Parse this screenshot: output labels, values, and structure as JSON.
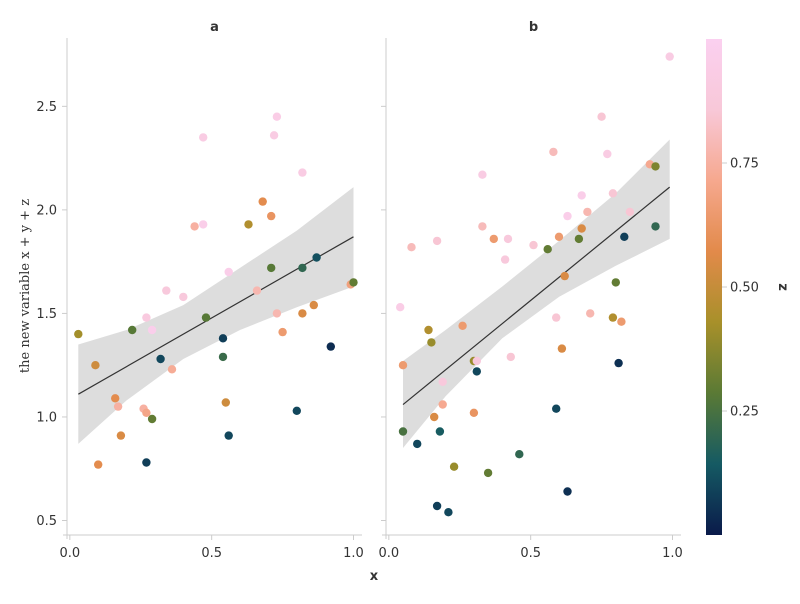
{
  "chart_data": {
    "type": "scatter",
    "xlabel": "x",
    "ylabel": "the new variable x + y + z",
    "colorbar_label": "z",
    "xlim": [
      -0.01,
      1.03
    ],
    "ylim": [
      0.43,
      2.83
    ],
    "xticks": [
      0.0,
      0.5,
      1.0
    ],
    "xtick_labels": [
      "0.0",
      "0.5",
      "1.0"
    ],
    "yticks": [
      0.5,
      1.0,
      1.5,
      2.0,
      2.5
    ],
    "ytick_labels": [
      "0.5",
      "1.0",
      "1.5",
      "2.0",
      "2.5"
    ],
    "colorbar_ticks": [
      0.25,
      0.5,
      0.75
    ],
    "colorbar_tick_labels": [
      "0.25",
      "0.50",
      "0.75"
    ],
    "colorbar_range": [
      0.0,
      1.0
    ],
    "colormap": [
      "#0a1a4a",
      "#155a63",
      "#5a7a35",
      "#a8902a",
      "#e28a4a",
      "#f6a88e",
      "#f8c8d8",
      "#fbd0f0"
    ],
    "band_color": "#dddddd",
    "line_color": "#333333",
    "facets": [
      {
        "title": "a",
        "fit": {
          "x": [
            0.03,
            1.0
          ],
          "y": [
            1.11,
            1.87
          ]
        },
        "band_upper": [
          [
            0.03,
            1.35
          ],
          [
            0.2,
            1.42
          ],
          [
            0.4,
            1.54
          ],
          [
            0.6,
            1.72
          ],
          [
            0.8,
            1.9
          ],
          [
            1.0,
            2.11
          ]
        ],
        "band_lower": [
          [
            0.03,
            0.87
          ],
          [
            0.2,
            1.08
          ],
          [
            0.4,
            1.28
          ],
          [
            0.6,
            1.42
          ],
          [
            0.8,
            1.53
          ],
          [
            1.0,
            1.63
          ]
        ],
        "points": [
          [
            0.03,
            1.4,
            0.42
          ],
          [
            0.09,
            1.25,
            0.52
          ],
          [
            0.1,
            0.77,
            0.58
          ],
          [
            0.16,
            1.09,
            0.58
          ],
          [
            0.17,
            1.05,
            0.75
          ],
          [
            0.18,
            0.91,
            0.55
          ],
          [
            0.22,
            1.42,
            0.28
          ],
          [
            0.26,
            1.04,
            0.75
          ],
          [
            0.27,
            1.02,
            0.7
          ],
          [
            0.27,
            1.48,
            0.9
          ],
          [
            0.27,
            0.78,
            0.08
          ],
          [
            0.29,
            1.42,
            0.97
          ],
          [
            0.29,
            0.99,
            0.3
          ],
          [
            0.32,
            1.28,
            0.1
          ],
          [
            0.34,
            1.61,
            0.88
          ],
          [
            0.36,
            1.23,
            0.73
          ],
          [
            0.4,
            1.58,
            0.88
          ],
          [
            0.44,
            1.92,
            0.75
          ],
          [
            0.47,
            2.35,
            0.92
          ],
          [
            0.47,
            1.93,
            0.96
          ],
          [
            0.48,
            1.48,
            0.28
          ],
          [
            0.54,
            1.38,
            0.08
          ],
          [
            0.54,
            1.29,
            0.22
          ],
          [
            0.55,
            1.07,
            0.52
          ],
          [
            0.56,
            1.7,
            0.96
          ],
          [
            0.56,
            0.91,
            0.1
          ],
          [
            0.63,
            1.93,
            0.45
          ],
          [
            0.66,
            1.61,
            0.78
          ],
          [
            0.68,
            2.04,
            0.58
          ],
          [
            0.71,
            1.97,
            0.62
          ],
          [
            0.71,
            1.72,
            0.28
          ],
          [
            0.72,
            2.36,
            0.92
          ],
          [
            0.73,
            2.45,
            0.94
          ],
          [
            0.73,
            1.5,
            0.78
          ],
          [
            0.75,
            1.41,
            0.65
          ],
          [
            0.8,
            1.03,
            0.1
          ],
          [
            0.82,
            2.18,
            0.92
          ],
          [
            0.82,
            1.5,
            0.55
          ],
          [
            0.82,
            1.72,
            0.2
          ],
          [
            0.86,
            1.54,
            0.55
          ],
          [
            0.87,
            1.77,
            0.12
          ],
          [
            0.92,
            1.34,
            0.04
          ],
          [
            0.99,
            1.64,
            0.68
          ],
          [
            1.0,
            1.65,
            0.3
          ]
        ]
      },
      {
        "title": "b",
        "fit": {
          "x": [
            0.05,
            0.99
          ],
          "y": [
            1.06,
            2.11
          ]
        },
        "band_upper": [
          [
            0.05,
            1.27
          ],
          [
            0.2,
            1.42
          ],
          [
            0.4,
            1.63
          ],
          [
            0.6,
            1.85
          ],
          [
            0.8,
            2.08
          ],
          [
            0.99,
            2.34
          ]
        ],
        "band_lower": [
          [
            0.05,
            0.85
          ],
          [
            0.2,
            1.1
          ],
          [
            0.4,
            1.38
          ],
          [
            0.6,
            1.58
          ],
          [
            0.8,
            1.73
          ],
          [
            0.99,
            1.86
          ]
        ],
        "points": [
          [
            0.04,
            1.53,
            0.94
          ],
          [
            0.05,
            0.93,
            0.25
          ],
          [
            0.05,
            1.25,
            0.65
          ],
          [
            0.08,
            1.82,
            0.8
          ],
          [
            0.1,
            0.87,
            0.1
          ],
          [
            0.14,
            1.42,
            0.45
          ],
          [
            0.15,
            1.36,
            0.4
          ],
          [
            0.16,
            1.0,
            0.55
          ],
          [
            0.17,
            1.85,
            0.85
          ],
          [
            0.17,
            0.57,
            0.08
          ],
          [
            0.18,
            0.93,
            0.15
          ],
          [
            0.19,
            1.17,
            0.88
          ],
          [
            0.19,
            1.06,
            0.72
          ],
          [
            0.21,
            0.54,
            0.1
          ],
          [
            0.23,
            0.76,
            0.4
          ],
          [
            0.26,
            1.44,
            0.65
          ],
          [
            0.3,
            1.27,
            0.4
          ],
          [
            0.3,
            1.02,
            0.62
          ],
          [
            0.31,
            1.27,
            0.88
          ],
          [
            0.31,
            1.22,
            0.1
          ],
          [
            0.33,
            2.17,
            0.92
          ],
          [
            0.33,
            1.92,
            0.8
          ],
          [
            0.35,
            0.73,
            0.3
          ],
          [
            0.37,
            1.86,
            0.65
          ],
          [
            0.41,
            1.76,
            0.88
          ],
          [
            0.42,
            1.86,
            0.88
          ],
          [
            0.43,
            1.29,
            0.85
          ],
          [
            0.46,
            0.82,
            0.2
          ],
          [
            0.51,
            1.83,
            0.85
          ],
          [
            0.56,
            1.81,
            0.3
          ],
          [
            0.58,
            2.28,
            0.8
          ],
          [
            0.59,
            1.48,
            0.85
          ],
          [
            0.59,
            1.04,
            0.1
          ],
          [
            0.6,
            1.87,
            0.65
          ],
          [
            0.61,
            1.33,
            0.55
          ],
          [
            0.62,
            1.68,
            0.55
          ],
          [
            0.63,
            0.64,
            0.05
          ],
          [
            0.63,
            1.97,
            0.96
          ],
          [
            0.67,
            1.86,
            0.3
          ],
          [
            0.68,
            1.91,
            0.55
          ],
          [
            0.68,
            2.07,
            0.96
          ],
          [
            0.7,
            1.99,
            0.78
          ],
          [
            0.71,
            1.5,
            0.78
          ],
          [
            0.75,
            2.45,
            0.85
          ],
          [
            0.77,
            2.27,
            0.92
          ],
          [
            0.79,
            2.08,
            0.85
          ],
          [
            0.79,
            1.48,
            0.45
          ],
          [
            0.8,
            1.65,
            0.3
          ],
          [
            0.81,
            1.26,
            0.05
          ],
          [
            0.82,
            1.46,
            0.65
          ],
          [
            0.83,
            1.87,
            0.08
          ],
          [
            0.85,
            1.99,
            0.85
          ],
          [
            0.92,
            2.22,
            0.72
          ],
          [
            0.94,
            2.21,
            0.35
          ],
          [
            0.94,
            1.92,
            0.2
          ],
          [
            0.99,
            2.74,
            0.92
          ]
        ]
      }
    ]
  }
}
